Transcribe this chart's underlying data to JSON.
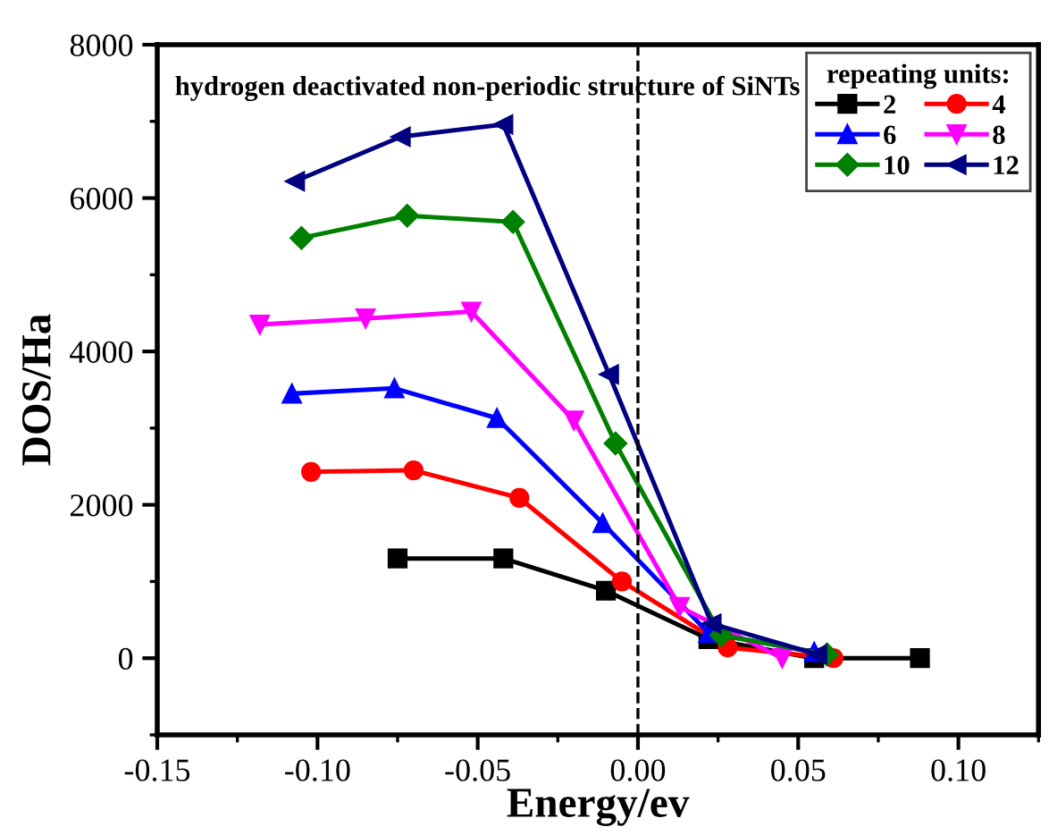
{
  "chart_data": {
    "type": "line",
    "title": "hydrogen deactivated non-periodic structure of SiNTs",
    "xlabel": "Energy/ev",
    "ylabel": "DOS/Ha",
    "legend_title": "repeating units:",
    "legend": "top right",
    "xlim": [
      -0.15,
      0.125
    ],
    "xticks": [
      {
        "value": -0.15,
        "label": "-0.15"
      },
      {
        "value": -0.1,
        "label": "-0.10"
      },
      {
        "value": -0.05,
        "label": "-0.05"
      },
      {
        "value": 0,
        "label": "0.00"
      },
      {
        "value": 0.05,
        "label": "0.05"
      },
      {
        "value": 0.1,
        "label": "0.10"
      }
    ],
    "ylim": [
      -1000,
      8000
    ],
    "yticks": [
      0,
      2000,
      4000,
      6000,
      8000
    ],
    "grid": false,
    "ref_lines": [
      {
        "axis": "x",
        "value": 0,
        "line_style": "dashed",
        "color": "#000000"
      }
    ],
    "series": [
      {
        "name": "2",
        "color": "#000000",
        "marker": "square",
        "x": [
          -0.075,
          -0.042,
          -0.01,
          0.022,
          0.055,
          0.088
        ],
        "values": [
          1300,
          1300,
          880,
          250,
          0,
          0
        ]
      },
      {
        "name": "4",
        "color": "#ff0000",
        "marker": "circle",
        "x": [
          -0.102,
          -0.07,
          -0.037,
          -0.005,
          0.028,
          0.061
        ],
        "values": [
          2430,
          2450,
          2090,
          1000,
          140,
          0
        ]
      },
      {
        "name": "6",
        "color": "#0000ff",
        "marker": "triangle",
        "x": [
          -0.108,
          -0.076,
          -0.044,
          -0.011,
          0.022,
          0.055
        ],
        "values": [
          3450,
          3520,
          3130,
          1760,
          330,
          80
        ]
      },
      {
        "name": "8",
        "color": "#ff00ff",
        "marker": "triangle_down",
        "x": [
          -0.118,
          -0.085,
          -0.052,
          -0.02,
          0.013,
          0.045
        ],
        "values": [
          4350,
          4430,
          4520,
          3100,
          670,
          0
        ]
      },
      {
        "name": "10",
        "color": "#008000",
        "marker": "diamond",
        "x": [
          -0.105,
          -0.072,
          -0.039,
          -0.007,
          0.026,
          0.059
        ],
        "values": [
          5480,
          5770,
          5690,
          2800,
          300,
          50
        ]
      },
      {
        "name": "12",
        "color": "#000080",
        "marker": "triangle_left",
        "x": [
          -0.107,
          -0.074,
          -0.042,
          -0.009,
          0.023,
          0.056
        ],
        "values": [
          6220,
          6800,
          6960,
          3700,
          450,
          50
        ]
      }
    ]
  }
}
